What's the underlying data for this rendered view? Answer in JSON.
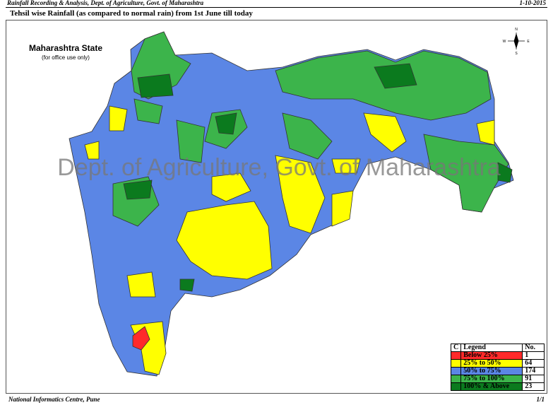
{
  "header": {
    "left": "Rainfall Recording & Analysis, Dept. of Agriculture, Govt. of Maharashtra",
    "right": "1-10-2015"
  },
  "title": "Tehsil wise Rainfall (as compared to normal rain) from 1st June till today",
  "map": {
    "title": "Maharashtra State",
    "subtitle": "(for office use only)",
    "watermark": "Dept. of Agriculture, Govt. of Maharashtra",
    "compass": [
      "N",
      "E",
      "S",
      "W"
    ]
  },
  "legend": {
    "header": [
      "C",
      "Legend",
      "No."
    ],
    "rows": [
      {
        "label": "Below 25%",
        "count": "1",
        "color": "#ff2a2a"
      },
      {
        "label": "25% to 50%",
        "count": "64",
        "color": "#ffff00"
      },
      {
        "label": "50% to 75%",
        "count": "174",
        "color": "#5b86e5"
      },
      {
        "label": "75% to 100%",
        "count": "91",
        "color": "#3cb44b"
      },
      {
        "label": "100% & Above",
        "count": "23",
        "color": "#0b7a1e"
      }
    ]
  },
  "footer": {
    "left": "National Informatics Centre, Pune",
    "right": "1/1"
  }
}
